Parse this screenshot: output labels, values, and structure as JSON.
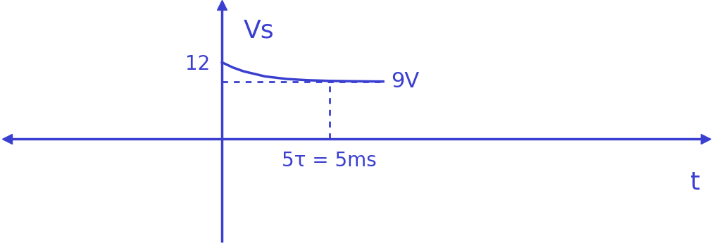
{
  "chart_data": {
    "type": "line",
    "x_label": "t",
    "y_label": "Vs",
    "x": [
      0,
      0.5,
      1,
      2,
      3,
      4,
      5,
      6,
      7.5
    ],
    "values": [
      12,
      11.2,
      10.6,
      9.8,
      9.4,
      9.2,
      9.1,
      9.05,
      9.0
    ],
    "xlim": [
      -10,
      22.5
    ],
    "ylim": [
      -16,
      21
    ],
    "xticks": [
      {
        "value": 5,
        "label": "5τ = 5ms"
      }
    ],
    "yticks": [
      12
    ],
    "annotations": [
      {
        "text": "9V",
        "y": 9
      }
    ],
    "color": "#3a3fd0",
    "line_style": "solid",
    "grid": false
  }
}
